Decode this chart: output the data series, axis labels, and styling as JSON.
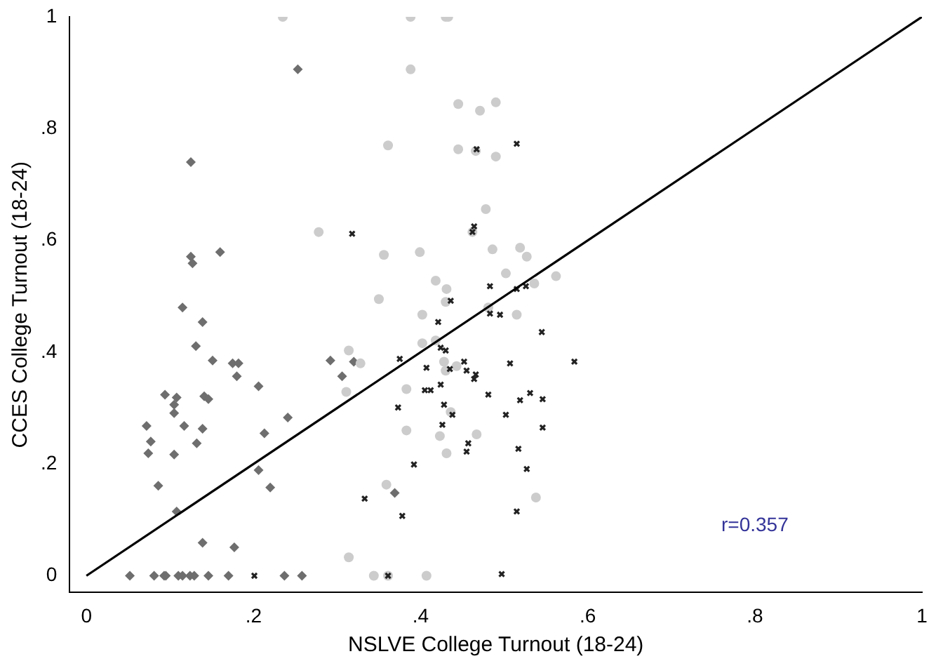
{
  "chart_data": {
    "type": "scatter",
    "xlabel": "NSLVE College Turnout (18-24)",
    "ylabel": "CCES College Turnout (18-24)",
    "xlim": [
      -0.02,
      1
    ],
    "ylim": [
      -0.03,
      1
    ],
    "xticks": [
      {
        "value": 0,
        "label": "0"
      },
      {
        "value": 0.2,
        "label": ".2"
      },
      {
        "value": 0.4,
        "label": ".4"
      },
      {
        "value": 0.6,
        "label": ".6"
      },
      {
        "value": 0.8,
        "label": ".8"
      },
      {
        "value": 1,
        "label": "1"
      }
    ],
    "yticks": [
      {
        "value": 0,
        "label": "0"
      },
      {
        "value": 0.2,
        "label": ".2"
      },
      {
        "value": 0.4,
        "label": ".4"
      },
      {
        "value": 0.6,
        "label": ".6"
      },
      {
        "value": 0.8,
        "label": ".8"
      },
      {
        "value": 1,
        "label": "1"
      }
    ],
    "grid": false,
    "legend": false,
    "annotations": [
      "r=0.357"
    ],
    "series": [
      {
        "marker": "diamond",
        "color": "#6e6e6e",
        "x": [
          0.115,
          0.139,
          0.131,
          0.151,
          0.175,
          0.182,
          0.18,
          0.206,
          0.292,
          0.306,
          0.32,
          0.094,
          0.108,
          0.105,
          0.105,
          0.141,
          0.146,
          0.072,
          0.117,
          0.139,
          0.241,
          0.077,
          0.132,
          0.213,
          0.074,
          0.105,
          0.206,
          0.086,
          0.22,
          0.108,
          0.139,
          0.177,
          0.052,
          0.081,
          0.093,
          0.095,
          0.11,
          0.115,
          0.124,
          0.129,
          0.146,
          0.17,
          0.237,
          0.258,
          0.253,
          0.125,
          0.16,
          0.125,
          0.127,
          0.369
        ],
        "values": [
          0.48,
          0.454,
          0.411,
          0.385,
          0.38,
          0.38,
          0.357,
          0.339,
          0.385,
          0.357,
          0.383,
          0.324,
          0.319,
          0.306,
          0.291,
          0.321,
          0.316,
          0.268,
          0.268,
          0.263,
          0.283,
          0.24,
          0.237,
          0.255,
          0.219,
          0.217,
          0.189,
          0.161,
          0.158,
          0.115,
          0.059,
          0.051,
          0,
          0,
          0,
          0,
          0,
          0,
          0,
          0,
          0,
          0,
          0,
          0,
          0.906,
          0.74,
          0.579,
          0.571,
          0.559,
          0.148
        ]
      },
      {
        "marker": "circle",
        "color": "#cccccc",
        "x": [
          0.235,
          0.278,
          0.314,
          0.311,
          0.314,
          0.388,
          0.43,
          0.433,
          0.388,
          0.445,
          0.471,
          0.49,
          0.361,
          0.445,
          0.466,
          0.49,
          0.478,
          0.462,
          0.356,
          0.399,
          0.486,
          0.519,
          0.527,
          0.502,
          0.562,
          0.418,
          0.431,
          0.536,
          0.35,
          0.43,
          0.402,
          0.481,
          0.515,
          0.328,
          0.402,
          0.418,
          0.428,
          0.443,
          0.43,
          0.383,
          0.436,
          0.383,
          0.423,
          0.467,
          0.431,
          0.359,
          0.538,
          0.344,
          0.361,
          0.407
        ],
        "values": [
          1,
          0.615,
          0.403,
          0.329,
          0.033,
          1,
          1,
          1,
          0.906,
          0.844,
          0.832,
          0.847,
          0.77,
          0.763,
          0.76,
          0.75,
          0.656,
          0.615,
          0.574,
          0.579,
          0.584,
          0.587,
          0.571,
          0.541,
          0.536,
          0.528,
          0.513,
          0.523,
          0.495,
          0.49,
          0.467,
          0.48,
          0.467,
          0.38,
          0.416,
          0.421,
          0.383,
          0.375,
          0.367,
          0.334,
          0.293,
          0.26,
          0.25,
          0.253,
          0.219,
          0.163,
          0.14,
          0,
          0,
          0
        ]
      },
      {
        "marker": "cross",
        "color": "#222222",
        "x": [
          0.318,
          0.201,
          0.467,
          0.515,
          0.464,
          0.462,
          0.483,
          0.526,
          0.515,
          0.436,
          0.483,
          0.495,
          0.421,
          0.545,
          0.375,
          0.424,
          0.43,
          0.407,
          0.435,
          0.452,
          0.455,
          0.466,
          0.464,
          0.507,
          0.584,
          0.424,
          0.405,
          0.412,
          0.481,
          0.519,
          0.531,
          0.546,
          0.373,
          0.428,
          0.438,
          0.502,
          0.426,
          0.546,
          0.457,
          0.455,
          0.517,
          0.392,
          0.527,
          0.333,
          0.378,
          0.515,
          0.361,
          0.497
        ],
        "values": [
          0.612,
          0,
          0.763,
          0.773,
          0.625,
          0.615,
          0.518,
          0.518,
          0.513,
          0.492,
          0.469,
          0.467,
          0.454,
          0.436,
          0.388,
          0.408,
          0.403,
          0.372,
          0.37,
          0.383,
          0.367,
          0.36,
          0.352,
          0.38,
          0.383,
          0.342,
          0.332,
          0.332,
          0.324,
          0.314,
          0.327,
          0.316,
          0.301,
          0.306,
          0.288,
          0.288,
          0.27,
          0.265,
          0.237,
          0.222,
          0.227,
          0.199,
          0.191,
          0.138,
          0.107,
          0.115,
          0,
          0.003
        ]
      },
      {
        "type": "line",
        "marker": "none",
        "color": "#000000",
        "x": [
          0,
          1
        ],
        "values": [
          0,
          1
        ]
      }
    ]
  }
}
